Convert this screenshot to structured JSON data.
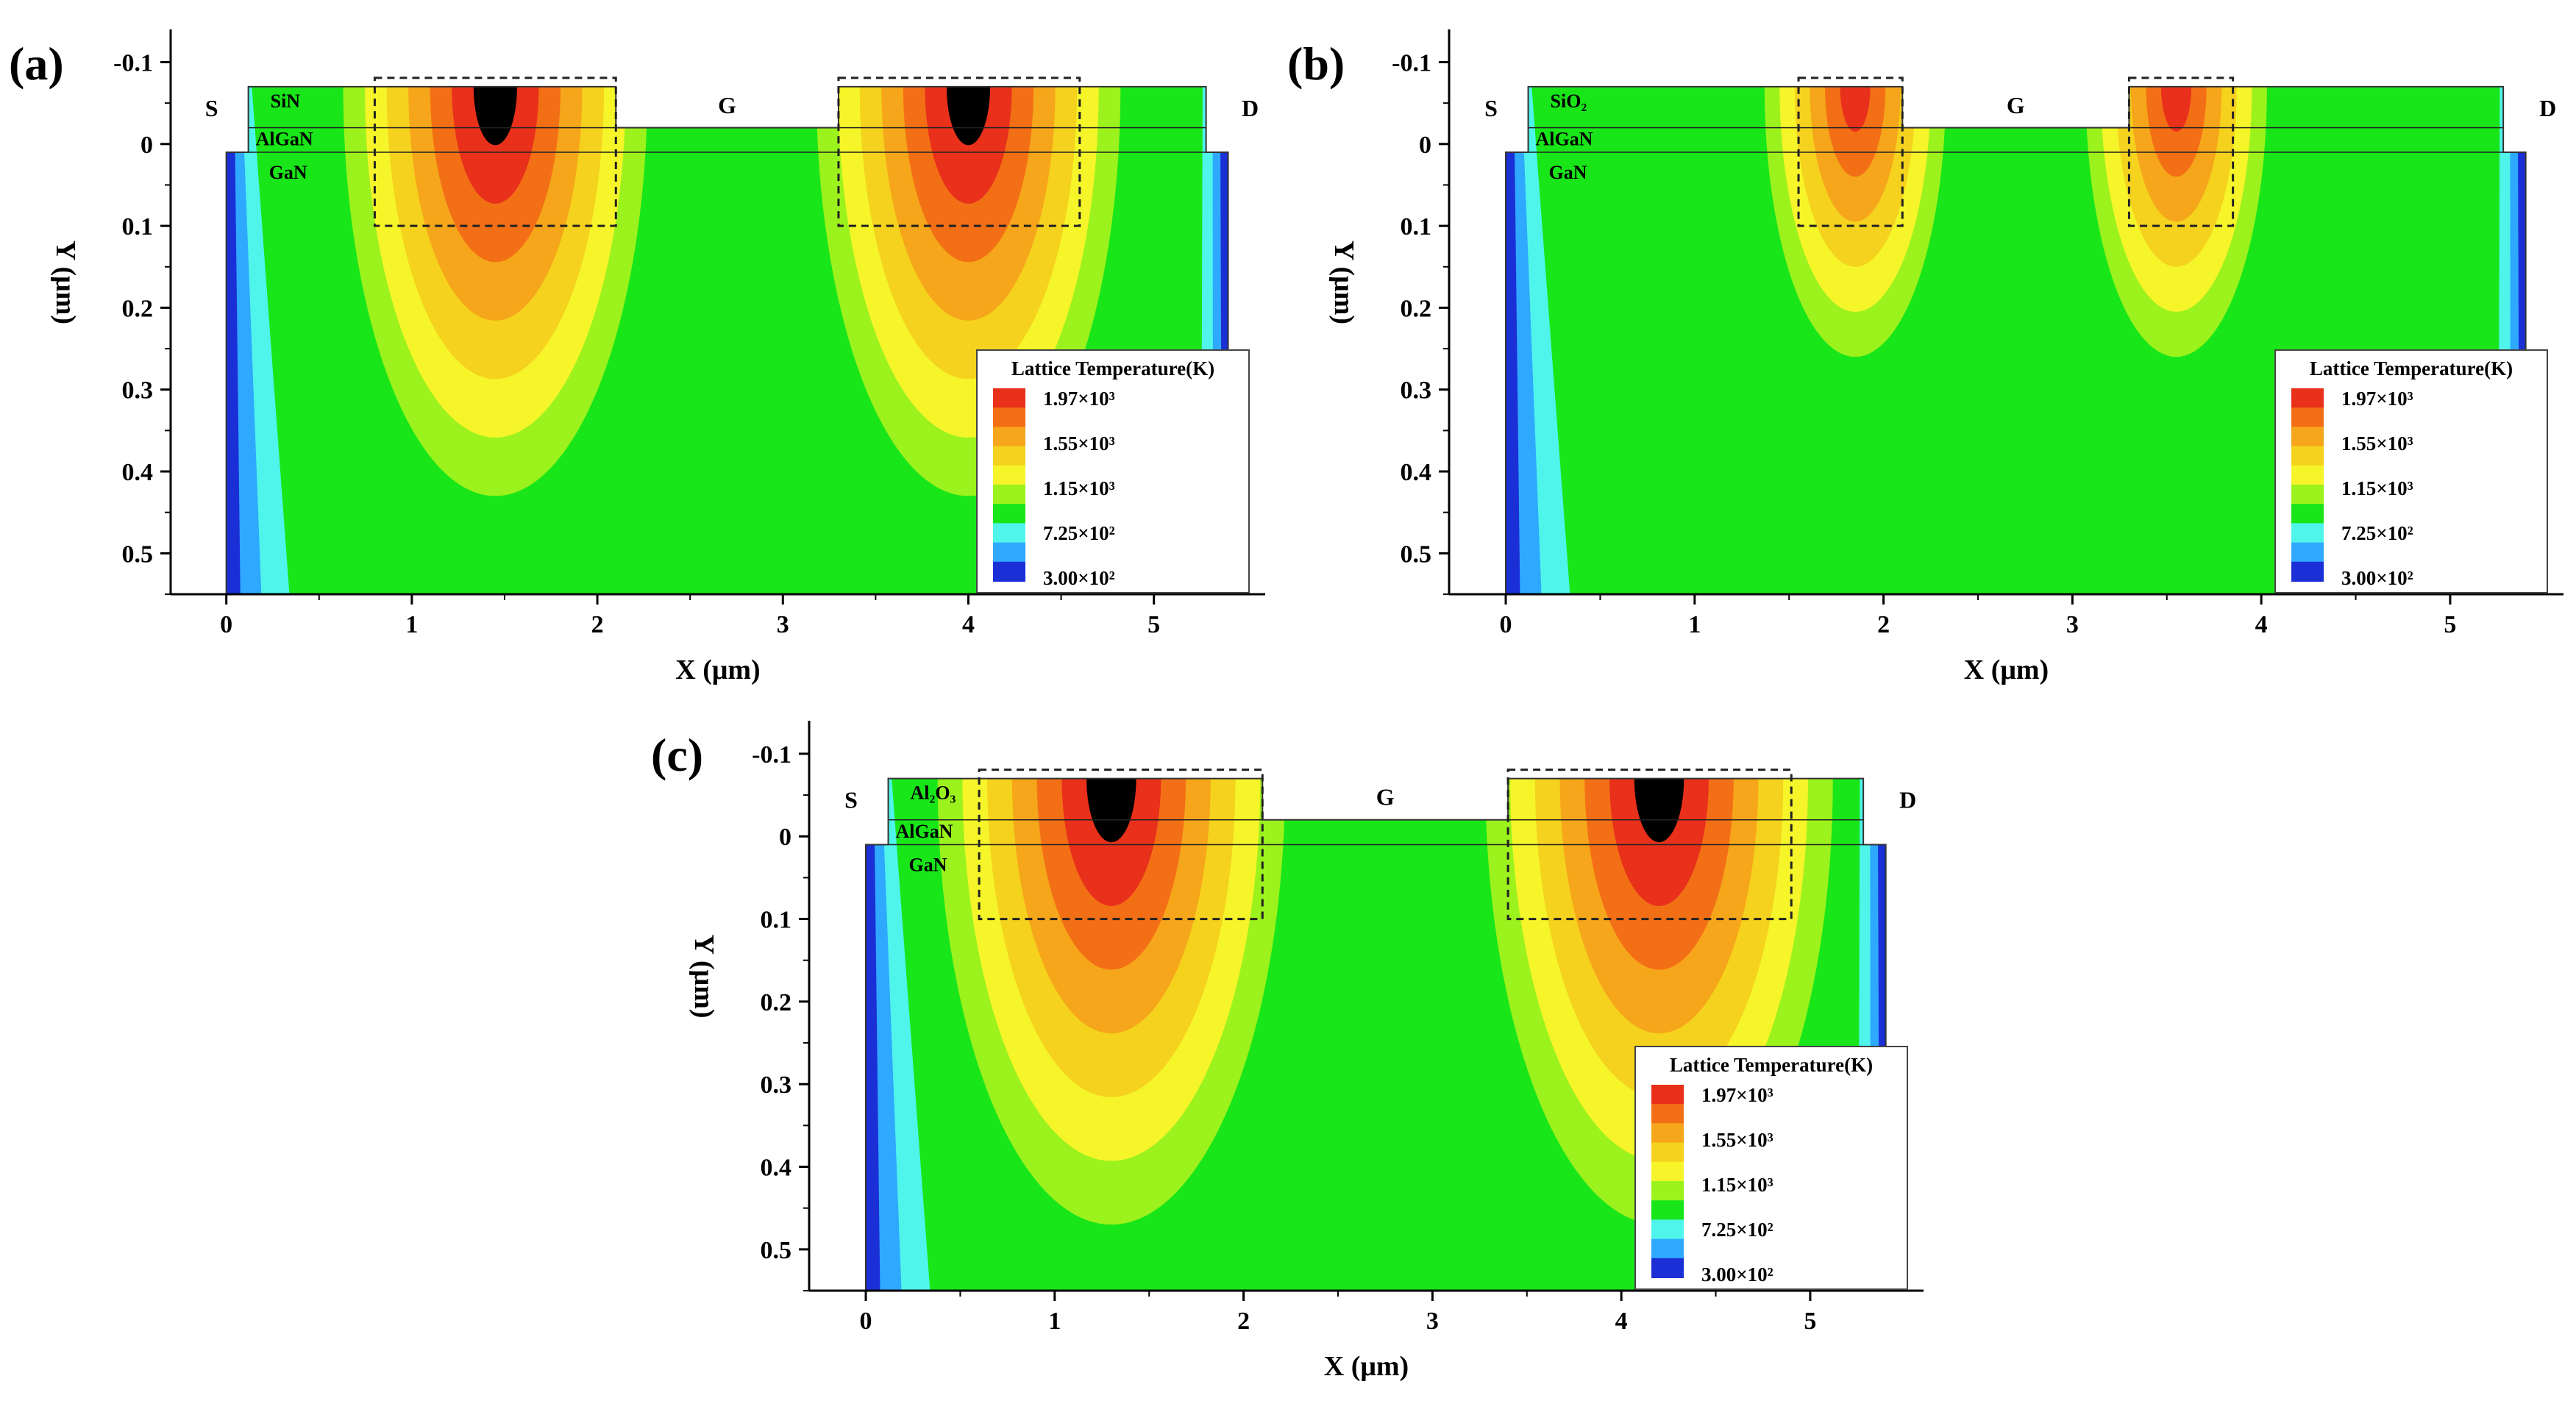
{
  "figure": {
    "description_free": true
  },
  "colors": {
    "scale": [
      "#1a2fd6",
      "#2fa8ff",
      "#4ff5ea",
      "#19e619",
      "#9cf21c",
      "#f5f52a",
      "#f5d21e",
      "#f6a61a",
      "#f36f16",
      "#e8301a"
    ],
    "background": "#ffffff",
    "axis": "#000000"
  },
  "chart_data": [
    {
      "type": "heatmap",
      "panel_label": "(a)",
      "passivation": "SiN",
      "layers": [
        "AlGaN",
        "GaN"
      ],
      "electrodes": {
        "source": "S",
        "gate": "G",
        "drain": "D"
      },
      "xlabel": "X (μm)",
      "ylabel": "Y (μm)",
      "xlim": [
        -0.3,
        5.6
      ],
      "ylim": [
        -0.14,
        0.55
      ],
      "xticks": [
        "0",
        "1",
        "2",
        "3",
        "4",
        "5"
      ],
      "yticks": [
        "-0.1",
        "0",
        "0.1",
        "0.2",
        "0.3",
        "0.4",
        "0.5"
      ],
      "device": {
        "x_start": 0.0,
        "x_end": 5.4,
        "gan_top": 0.01,
        "barrier_top": -0.02,
        "passivation_top": -0.07
      },
      "hotspots": [
        {
          "x_center": 1.45,
          "x_half_width": 0.82,
          "depth_max": 0.43,
          "peak_k": 1970
        },
        {
          "x_center": 4.0,
          "x_half_width": 0.82,
          "depth_max": 0.43,
          "peak_k": 1970
        }
      ],
      "dashed_boxes": [
        [
          0.8,
          2.1
        ],
        [
          3.3,
          4.6
        ]
      ],
      "legend": {
        "title": "Lattice Temperature(K)",
        "entries": [
          "1.97×10³",
          "1.55×10³",
          "1.15×10³",
          "7.25×10²",
          "3.00×10²"
        ],
        "values": [
          1970,
          1550,
          1150,
          725,
          300
        ]
      }
    },
    {
      "type": "heatmap",
      "panel_label": "(b)",
      "passivation": "SiO₂",
      "layers": [
        "AlGaN",
        "GaN"
      ],
      "electrodes": {
        "source": "S",
        "gate": "G",
        "drain": "D"
      },
      "xlabel": "X (μm)",
      "ylabel": "Y (μm)",
      "xlim": [
        -0.3,
        5.6
      ],
      "ylim": [
        -0.14,
        0.55
      ],
      "xticks": [
        "0",
        "1",
        "2",
        "3",
        "4",
        "5"
      ],
      "yticks": [
        "-0.1",
        "0",
        "0.1",
        "0.2",
        "0.3",
        "0.4",
        "0.5"
      ],
      "device": {
        "x_start": 0.0,
        "x_end": 5.4,
        "gan_top": 0.01,
        "barrier_top": -0.02,
        "passivation_top": -0.07
      },
      "hotspots": [
        {
          "x_center": 1.85,
          "x_half_width": 0.48,
          "depth_max": 0.26,
          "peak_k": 1800
        },
        {
          "x_center": 3.55,
          "x_half_width": 0.48,
          "depth_max": 0.26,
          "peak_k": 1800
        }
      ],
      "dashed_boxes": [
        [
          1.55,
          2.1
        ],
        [
          3.3,
          3.85
        ]
      ],
      "legend": {
        "title": "Lattice Temperature(K)",
        "entries": [
          "1.97×10³",
          "1.55×10³",
          "1.15×10³",
          "7.25×10²",
          "3.00×10²"
        ],
        "values": [
          1970,
          1550,
          1150,
          725,
          300
        ]
      }
    },
    {
      "type": "heatmap",
      "panel_label": "(c)",
      "passivation": "Al₂O₃",
      "layers": [
        "AlGaN",
        "GaN"
      ],
      "electrodes": {
        "source": "S",
        "gate": "G",
        "drain": "D"
      },
      "xlabel": "X (μm)",
      "ylabel": "Y (μm)",
      "xlim": [
        -0.3,
        5.6
      ],
      "ylim": [
        -0.14,
        0.55
      ],
      "xticks": [
        "0",
        "1",
        "2",
        "3",
        "4",
        "5"
      ],
      "yticks": [
        "-0.1",
        "0",
        "0.1",
        "0.2",
        "0.3",
        "0.4",
        "0.5"
      ],
      "device": {
        "x_start": 0.0,
        "x_end": 5.4,
        "gan_top": 0.01,
        "barrier_top": -0.02,
        "passivation_top": -0.07
      },
      "hotspots": [
        {
          "x_center": 1.3,
          "x_half_width": 0.92,
          "depth_max": 0.47,
          "peak_k": 1970
        },
        {
          "x_center": 4.2,
          "x_half_width": 0.92,
          "depth_max": 0.47,
          "peak_k": 1970
        }
      ],
      "dashed_boxes": [
        [
          0.6,
          2.1
        ],
        [
          3.4,
          4.9
        ]
      ],
      "legend": {
        "title": "Lattice Temperature(K)",
        "entries": [
          "1.97×10³",
          "1.55×10³",
          "1.15×10³",
          "7.25×10²",
          "3.00×10²"
        ],
        "values": [
          1970,
          1550,
          1150,
          725,
          300
        ]
      }
    }
  ]
}
